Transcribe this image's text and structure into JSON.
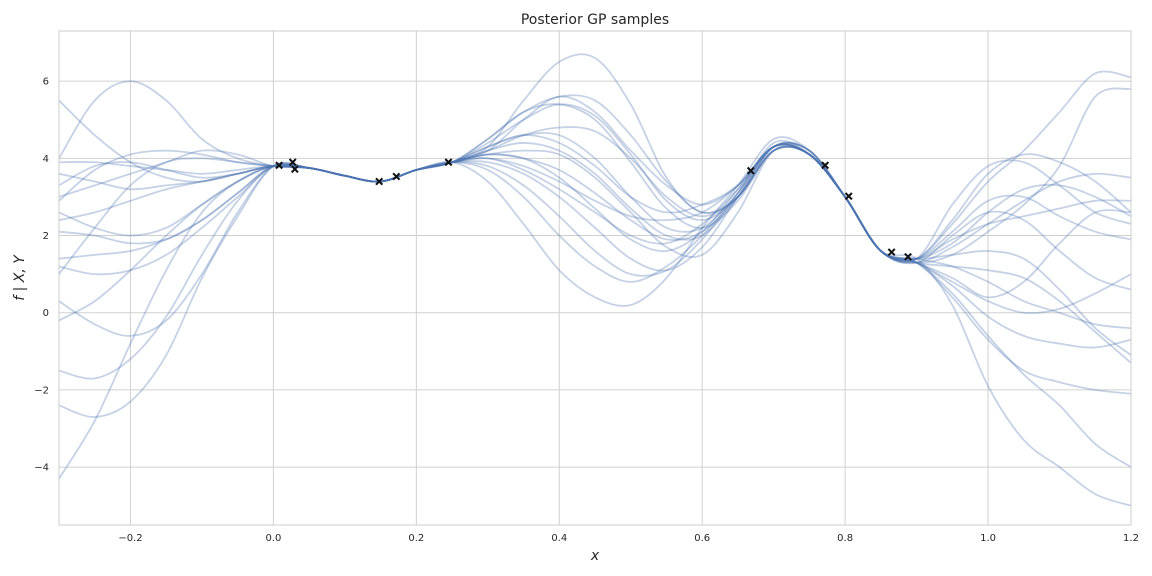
{
  "chart_data": {
    "type": "line",
    "title": "Posterior GP samples",
    "xlabel": "x",
    "ylabel": "f | X, Y",
    "xlim": [
      -0.3,
      1.2
    ],
    "ylim": [
      -5.5,
      7.3
    ],
    "x_ticks": [
      -0.2,
      0.0,
      0.2,
      0.4,
      0.6,
      0.8,
      1.0,
      1.2
    ],
    "x_tick_labels": [
      "−0.2",
      "0.0",
      "0.2",
      "0.4",
      "0.6",
      "0.8",
      "1.0",
      "1.2"
    ],
    "y_ticks": [
      -4,
      -2,
      0,
      2,
      4,
      6
    ],
    "y_tick_labels": [
      "−4",
      "−2",
      "0",
      "2",
      "4",
      "6"
    ],
    "grid": true,
    "colors": {
      "samples": "#4c72b0",
      "observations": "#111111",
      "grid": "#d0d0d0",
      "frame": "#cccccc"
    },
    "observations": {
      "x": [
        0.008,
        0.027,
        0.03,
        0.148,
        0.172,
        0.245,
        0.668,
        0.772,
        0.805,
        0.865,
        0.888
      ],
      "y": [
        3.82,
        3.9,
        3.72,
        3.4,
        3.53,
        3.9,
        3.68,
        3.82,
        3.02,
        1.57,
        1.45
      ]
    },
    "sample_x": [
      -0.3,
      -0.25,
      -0.2,
      -0.15,
      -0.1,
      -0.05,
      0.0,
      0.05,
      0.1,
      0.15,
      0.2,
      0.25,
      0.3,
      0.35,
      0.4,
      0.45,
      0.5,
      0.55,
      0.6,
      0.65,
      0.7,
      0.75,
      0.8,
      0.85,
      0.9,
      0.95,
      1.0,
      1.05,
      1.1,
      1.15,
      1.2
    ],
    "series": [
      {
        "values": [
          4.0,
          5.5,
          6.0,
          5.5,
          4.5,
          4.0,
          3.8,
          3.75,
          3.55,
          3.4,
          3.7,
          3.9,
          4.3,
          5.5,
          6.5,
          6.6,
          5.4,
          3.5,
          2.6,
          3.0,
          4.3,
          4.2,
          3.0,
          1.6,
          1.4,
          2.3,
          3.4,
          4.2,
          5.2,
          6.2,
          6.1
        ]
      },
      {
        "values": [
          5.5,
          4.6,
          3.9,
          3.5,
          3.4,
          3.6,
          3.8,
          3.75,
          3.55,
          3.4,
          3.7,
          3.9,
          4.2,
          5.0,
          5.6,
          5.2,
          4.2,
          3.3,
          2.8,
          3.3,
          4.3,
          4.1,
          3.0,
          1.6,
          1.3,
          1.5,
          2.1,
          2.8,
          3.8,
          5.6,
          5.8
        ]
      },
      {
        "values": [
          -4.3,
          -2.8,
          -0.8,
          1.1,
          2.6,
          3.4,
          3.8,
          3.75,
          3.55,
          3.4,
          3.7,
          3.9,
          3.7,
          3.0,
          2.0,
          1.2,
          0.8,
          1.2,
          2.0,
          3.1,
          4.4,
          4.1,
          3.0,
          1.6,
          1.3,
          0.4,
          -0.7,
          -1.5,
          -1.8,
          -2.0,
          -2.1
        ]
      },
      {
        "values": [
          -2.4,
          -2.7,
          -2.3,
          -1.1,
          0.9,
          2.5,
          3.8,
          3.75,
          3.55,
          3.4,
          3.7,
          3.9,
          3.4,
          2.3,
          1.1,
          0.4,
          0.2,
          0.9,
          2.2,
          3.3,
          4.5,
          4.2,
          3.0,
          1.6,
          1.4,
          0.2,
          -1.9,
          -3.3,
          -4.0,
          -4.7,
          -5.0
        ]
      },
      {
        "values": [
          -1.5,
          -1.7,
          -1.2,
          -0.1,
          1.5,
          2.9,
          3.8,
          3.75,
          3.55,
          3.4,
          3.7,
          3.9,
          3.9,
          3.6,
          3.0,
          2.2,
          1.4,
          1.1,
          1.7,
          3.0,
          4.3,
          4.1,
          3.0,
          1.6,
          1.3,
          0.5,
          -0.6,
          -1.6,
          -2.4,
          -3.4,
          -4.0
        ]
      },
      {
        "values": [
          0.3,
          -0.3,
          -0.6,
          -0.2,
          1.0,
          2.6,
          3.8,
          3.75,
          3.55,
          3.4,
          3.7,
          3.9,
          4.0,
          3.7,
          3.2,
          2.6,
          2.0,
          1.8,
          2.3,
          3.2,
          4.3,
          4.2,
          3.0,
          1.6,
          1.4,
          1.2,
          0.8,
          0.3,
          0.0,
          -0.3,
          -0.4
        ]
      },
      {
        "values": [
          1.4,
          1.5,
          1.6,
          1.9,
          2.4,
          3.1,
          3.8,
          3.75,
          3.55,
          3.4,
          3.7,
          3.9,
          4.1,
          4.0,
          3.5,
          2.7,
          1.9,
          1.6,
          2.1,
          3.2,
          4.3,
          4.1,
          3.0,
          1.6,
          1.4,
          2.4,
          3.6,
          4.1,
          3.9,
          3.4,
          2.6
        ]
      },
      {
        "values": [
          2.1,
          2.0,
          1.8,
          1.9,
          2.4,
          3.1,
          3.8,
          3.75,
          3.55,
          3.4,
          3.7,
          3.9,
          4.3,
          4.6,
          4.6,
          4.0,
          3.0,
          2.2,
          2.2,
          3.1,
          4.3,
          4.1,
          3.0,
          1.6,
          1.3,
          2.0,
          2.6,
          2.4,
          1.6,
          0.9,
          0.6
        ]
      },
      {
        "values": [
          3.6,
          3.4,
          3.2,
          3.3,
          3.4,
          3.6,
          3.8,
          3.75,
          3.55,
          3.4,
          3.7,
          3.9,
          4.5,
          5.2,
          5.6,
          5.5,
          4.6,
          3.4,
          2.6,
          3.0,
          4.2,
          4.1,
          3.0,
          1.6,
          1.4,
          2.8,
          3.8,
          3.9,
          3.3,
          2.6,
          2.3
        ]
      },
      {
        "values": [
          2.9,
          3.7,
          4.1,
          4.2,
          4.1,
          3.9,
          3.8,
          3.75,
          3.55,
          3.4,
          3.7,
          3.9,
          4.4,
          5.0,
          5.4,
          5.1,
          4.1,
          2.9,
          2.4,
          3.0,
          4.2,
          4.1,
          3.0,
          1.6,
          1.3,
          1.7,
          2.3,
          2.9,
          3.4,
          3.6,
          3.5
        ]
      },
      {
        "values": [
          1.0,
          2.2,
          3.3,
          3.9,
          4.0,
          3.9,
          3.8,
          3.75,
          3.55,
          3.4,
          3.7,
          3.9,
          4.2,
          4.4,
          4.2,
          3.6,
          2.7,
          2.0,
          2.0,
          3.0,
          4.3,
          4.2,
          3.0,
          1.6,
          1.3,
          0.8,
          0.3,
          0.0,
          0.1,
          0.5,
          1.0
        ]
      },
      {
        "values": [
          3.3,
          3.8,
          3.9,
          3.7,
          3.5,
          3.6,
          3.8,
          3.75,
          3.55,
          3.4,
          3.7,
          3.9,
          3.8,
          3.3,
          2.5,
          1.6,
          1.0,
          1.1,
          1.9,
          3.1,
          4.3,
          4.1,
          3.0,
          1.6,
          1.4,
          1.9,
          2.3,
          2.5,
          2.7,
          2.9,
          2.9
        ]
      },
      {
        "values": [
          2.4,
          2.6,
          2.9,
          3.2,
          3.4,
          3.6,
          3.8,
          3.75,
          3.55,
          3.4,
          3.7,
          3.9,
          4.2,
          4.6,
          4.8,
          4.7,
          4.0,
          3.0,
          2.5,
          3.0,
          4.2,
          4.1,
          3.0,
          1.6,
          1.3,
          0.7,
          -0.1,
          -0.6,
          -0.8,
          -0.9,
          -0.7
        ]
      },
      {
        "values": [
          2.6,
          2.2,
          2.0,
          2.2,
          2.8,
          3.4,
          3.8,
          3.75,
          3.55,
          3.4,
          3.7,
          3.9,
          4.1,
          4.0,
          3.7,
          3.1,
          2.4,
          1.9,
          2.1,
          3.0,
          4.2,
          4.1,
          3.0,
          1.6,
          1.4,
          2.1,
          2.9,
          3.0,
          2.5,
          2.1,
          1.9
        ]
      },
      {
        "values": [
          3.9,
          3.9,
          3.8,
          3.7,
          3.6,
          3.7,
          3.8,
          3.75,
          3.55,
          3.4,
          3.7,
          3.9,
          4.0,
          3.8,
          3.4,
          2.9,
          2.5,
          2.4,
          2.6,
          3.3,
          4.3,
          4.2,
          3.0,
          1.6,
          1.4,
          1.5,
          1.6,
          1.4,
          0.6,
          -0.4,
          -1.1
        ]
      },
      {
        "values": [
          1.2,
          1.0,
          1.1,
          1.5,
          2.2,
          3.0,
          3.8,
          3.75,
          3.55,
          3.4,
          3.7,
          3.9,
          4.3,
          4.6,
          4.4,
          3.8,
          3.0,
          2.6,
          2.8,
          3.3,
          4.3,
          4.1,
          3.0,
          1.6,
          1.3,
          0.9,
          0.4,
          0.8,
          1.8,
          2.6,
          2.6
        ]
      },
      {
        "values": [
          -0.2,
          0.3,
          1.1,
          2.0,
          2.8,
          3.4,
          3.8,
          3.75,
          3.55,
          3.4,
          3.7,
          3.9,
          4.1,
          4.2,
          4.1,
          3.5,
          2.6,
          1.7,
          1.5,
          2.6,
          4.2,
          4.1,
          3.0,
          1.6,
          1.4,
          1.8,
          2.6,
          3.2,
          3.3,
          3.0,
          2.5
        ]
      },
      {
        "values": [
          3.0,
          3.3,
          3.6,
          3.9,
          4.2,
          4.1,
          3.8,
          3.75,
          3.55,
          3.4,
          3.7,
          3.9,
          4.5,
          5.2,
          5.4,
          5.0,
          3.9,
          2.7,
          2.2,
          2.9,
          4.2,
          4.1,
          3.0,
          1.6,
          1.3,
          1.2,
          1.1,
          0.9,
          0.3,
          -0.5,
          -1.3
        ]
      }
    ]
  }
}
